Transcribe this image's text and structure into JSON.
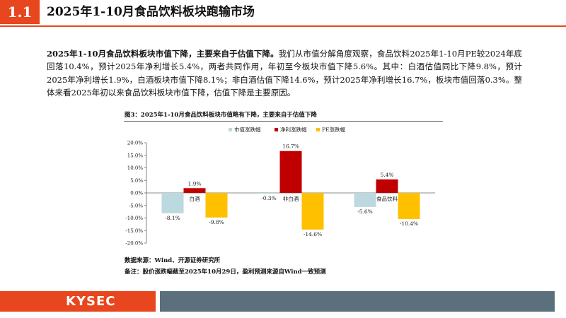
{
  "header": {
    "section_number": "1.1",
    "title": "2025年1-10月食品饮料板块跑输市场"
  },
  "paragraph": {
    "lead": "2025年1-10月食品饮料板块市值下降，主要来自于估值下降。",
    "body": "我们从市值分解角度观察，食品饮料2025年1-10月PE较2024年底回落10.4%，预计2025年净利增长5.4%，两者共同作用，年初至今板块市值下降5.6%。其中：白酒估值同比下降9.8%，预计2025年净利增长1.9%，白酒板块市值下降8.1%；非白酒估值下降14.6%，预计2025年净利增长16.7%，板块市值回落0.3%。整体来看2025年初以来食品饮料板块市值下降，估值下降是主要原因。"
  },
  "figure": {
    "title": "图3：2025年1-10月食品饮料板块市值略有下降，主要来自于估值下降",
    "source": "数据来源：Wind、开源证券研究所",
    "note": "备注：股价涨跌幅截至2025年10月29日，盈利预测来源自Wind一致预测"
  },
  "footer": {
    "logo": "KYSEC"
  },
  "colors": {
    "accent": "#e8461e",
    "footer_gray": "#5b6f7c",
    "series_market_cap": "#bcd9df",
    "series_net_profit": "#c00000",
    "series_pe": "#ffc000"
  },
  "chart_data": {
    "type": "bar",
    "categories": [
      "白酒",
      "非白酒",
      "食品饮料"
    ],
    "series": [
      {
        "name": "市值涨跌幅",
        "values": [
          -8.1,
          -0.3,
          -5.6
        ],
        "labels": [
          "-8.1%",
          "-0.3%",
          "-5.6%"
        ]
      },
      {
        "name": "净利涨跌幅",
        "values": [
          1.9,
          16.7,
          5.4
        ],
        "labels": [
          "1.9%",
          "16.7%",
          "5.4%"
        ]
      },
      {
        "name": "PE涨跌幅",
        "values": [
          -9.8,
          -14.6,
          -10.4
        ],
        "labels": [
          "-9.8%",
          "-14.6%",
          "-10.4%"
        ]
      }
    ],
    "yticks": [
      "20.0%",
      "15.0%",
      "10.0%",
      "5.0%",
      "0.0%",
      "-5.0%",
      "-10.0%",
      "-15.0%",
      "-20.0%"
    ],
    "ylim": [
      -20,
      20
    ],
    "legend_position": "top",
    "grid": false
  }
}
